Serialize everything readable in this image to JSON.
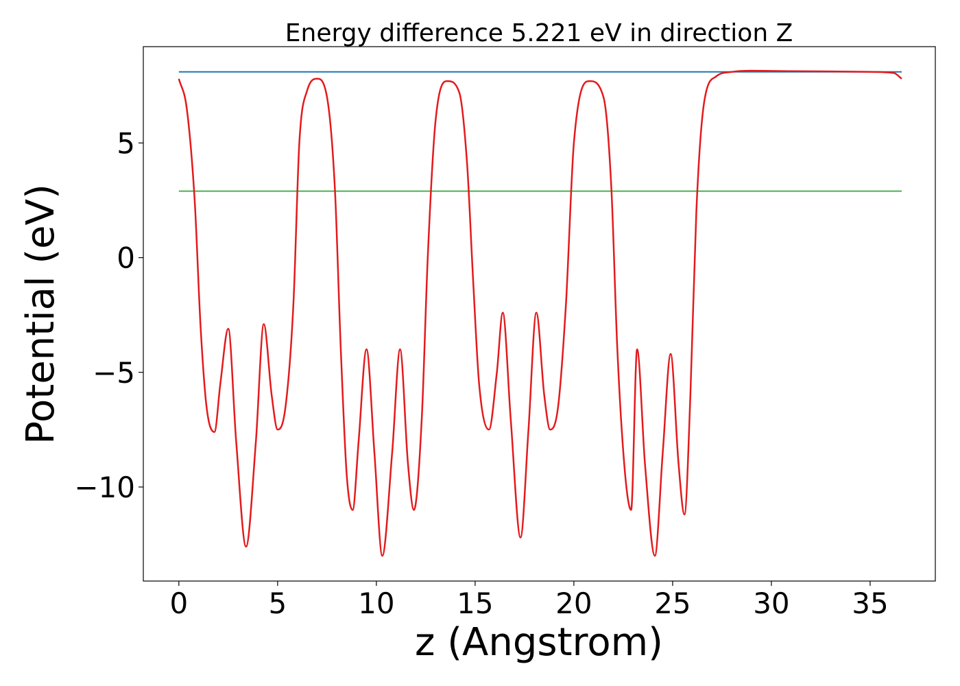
{
  "chart_data": {
    "type": "line",
    "title": "Energy difference 5.221 eV in direction Z",
    "xlabel": "z (Angstrom)",
    "ylabel": "Potential (eV)",
    "xlim": [
      -1.8,
      38.3
    ],
    "ylim": [
      -14.1,
      9.2
    ],
    "xticks": [
      0,
      5,
      10,
      15,
      20,
      25,
      30,
      35
    ],
    "xtick_labels": [
      "0",
      "5",
      "10",
      "15",
      "20",
      "25",
      "30",
      "35"
    ],
    "yticks": [
      5,
      0,
      -5,
      -10
    ],
    "ytick_labels": [
      "5",
      "0",
      "−5",
      "−10"
    ],
    "grid": false,
    "legend": "none",
    "x_range": [
      0,
      36.6
    ],
    "hlines": [
      {
        "y": 8.1,
        "color": "#1f77b4"
      },
      {
        "y": 2.9,
        "color": "#4caf50"
      }
    ],
    "series": [
      {
        "color": "#e31a1c",
        "x": [
          0,
          0.4,
          0.8,
          1.1,
          1.4,
          1.8,
          2.1,
          2.5,
          2.9,
          3.4,
          3.9,
          4.3,
          4.7,
          5.0,
          5.4,
          5.8,
          6.1,
          6.5,
          7.0,
          7.5,
          7.9,
          8.2,
          8.5,
          8.8,
          9.1,
          9.5,
          9.9,
          10.3,
          10.8,
          11.2,
          11.6,
          11.9,
          12.3,
          12.6,
          13.0,
          13.6,
          14.2,
          14.6,
          14.9,
          15.2,
          15.7,
          16.1,
          16.4,
          16.8,
          17.3,
          17.7,
          18.1,
          18.5,
          18.8,
          19.2,
          19.6,
          20.0,
          20.8,
          21.5,
          21.9,
          22.2,
          22.6,
          22.9,
          23.2,
          23.6,
          24.1,
          24.5,
          24.9,
          25.3,
          25.6,
          25.9,
          26.2,
          26.6,
          27.2,
          28.0,
          29.0,
          31.0,
          33.0,
          35.0,
          36.2,
          36.6
        ],
        "y": [
          7.8,
          6.5,
          2.5,
          -3.0,
          -6.5,
          -7.6,
          -5.5,
          -3.1,
          -8.0,
          -12.6,
          -8.0,
          -2.9,
          -6.0,
          -7.5,
          -6.5,
          -2.0,
          5.0,
          7.3,
          7.8,
          7.0,
          3.0,
          -4.0,
          -9.5,
          -11.0,
          -8.0,
          -4.0,
          -8.5,
          -13.0,
          -8.5,
          -4.0,
          -9.0,
          -11.0,
          -7.0,
          0.0,
          6.0,
          7.7,
          7.2,
          4.0,
          -1.0,
          -5.5,
          -7.5,
          -5.0,
          -2.4,
          -7.0,
          -12.2,
          -7.5,
          -2.4,
          -6.0,
          -7.5,
          -6.5,
          -2.0,
          5.0,
          7.7,
          7.0,
          3.0,
          -4.0,
          -9.5,
          -11.0,
          -4.0,
          -9.0,
          -13.0,
          -8.5,
          -4.2,
          -9.0,
          -11.2,
          -6.0,
          2.0,
          6.8,
          7.9,
          8.1,
          8.15,
          8.13,
          8.12,
          8.1,
          8.05,
          7.8
        ]
      }
    ]
  }
}
